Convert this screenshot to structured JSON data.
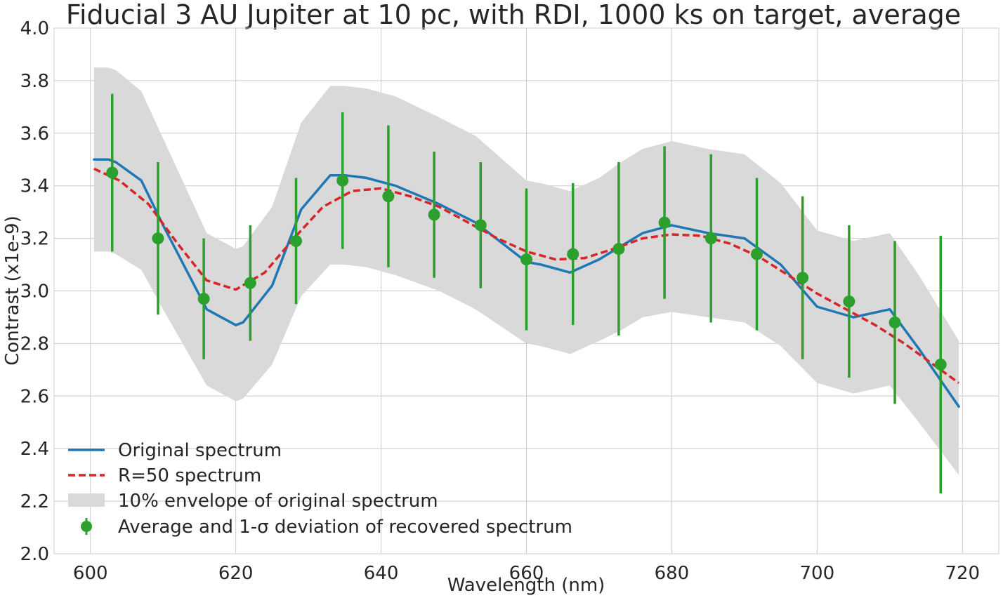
{
  "chart_data": {
    "type": "line",
    "title": "Fiducial 3 AU Jupiter at 10 pc, with RDI, 1000 ks on target, average",
    "xlabel": "Wavelength (nm)",
    "ylabel": "Contrast (x1e-9)",
    "xlim": [
      595,
      725
    ],
    "ylim": [
      2.0,
      4.0
    ],
    "xticks": [
      600,
      620,
      640,
      660,
      680,
      700,
      720
    ],
    "yticks": [
      2.0,
      2.2,
      2.4,
      2.6,
      2.8,
      3.0,
      3.2,
      3.4,
      3.6,
      3.8,
      4.0
    ],
    "xtick_labels": [
      "600",
      "620",
      "640",
      "660",
      "680",
      "700",
      "720"
    ],
    "ytick_labels": [
      "2.0",
      "2.2",
      "2.4",
      "2.6",
      "2.8",
      "3.0",
      "3.2",
      "3.4",
      "3.6",
      "3.8",
      "4.0"
    ],
    "grid": true,
    "legend_position": "lower-left",
    "series": [
      {
        "name": "Original spectrum",
        "kind": "line",
        "color": "#1f77b4",
        "x": [
          600.5,
          602.5,
          603.5,
          607,
          610,
          616,
          620,
          621,
          625,
          629,
          633,
          635,
          638,
          642,
          648,
          653,
          660,
          662,
          666,
          670,
          673,
          676,
          680,
          685,
          690,
          695,
          700,
          705,
          710,
          714,
          719.5
        ],
        "y": [
          3.5,
          3.5,
          3.49,
          3.42,
          3.25,
          2.93,
          2.87,
          2.88,
          3.02,
          3.31,
          3.44,
          3.44,
          3.43,
          3.4,
          3.33,
          3.26,
          3.11,
          3.1,
          3.07,
          3.12,
          3.17,
          3.22,
          3.25,
          3.22,
          3.2,
          3.1,
          2.94,
          2.9,
          2.93,
          2.78,
          2.56
        ]
      },
      {
        "name": "R=50 spectrum",
        "kind": "dashed-line",
        "color": "#d62728",
        "x": [
          600.5,
          604,
          608,
          612,
          616,
          620,
          624,
          628,
          632,
          636,
          640,
          644,
          648,
          652,
          656,
          660,
          664,
          668,
          672,
          676,
          680,
          684,
          688,
          692,
          696,
          700,
          704,
          708,
          712,
          716,
          719.5
        ],
        "y": [
          3.465,
          3.42,
          3.33,
          3.18,
          3.04,
          3.005,
          3.07,
          3.2,
          3.32,
          3.38,
          3.39,
          3.36,
          3.32,
          3.26,
          3.2,
          3.15,
          3.12,
          3.125,
          3.16,
          3.2,
          3.215,
          3.21,
          3.18,
          3.13,
          3.06,
          2.99,
          2.93,
          2.87,
          2.8,
          2.72,
          2.65
        ]
      }
    ],
    "envelope": {
      "name": "10% envelope of original spectrum",
      "color": "#d9d9d9",
      "x": [
        600.5,
        602.5,
        603.5,
        607,
        610,
        616,
        620,
        621,
        625,
        629,
        633,
        635,
        638,
        642,
        648,
        653,
        660,
        662,
        666,
        670,
        673,
        676,
        680,
        685,
        690,
        695,
        700,
        705,
        710,
        714,
        719.5
      ],
      "upper": [
        3.85,
        3.85,
        3.84,
        3.76,
        3.58,
        3.22,
        3.16,
        3.17,
        3.32,
        3.64,
        3.78,
        3.78,
        3.77,
        3.74,
        3.66,
        3.59,
        3.42,
        3.41,
        3.38,
        3.43,
        3.49,
        3.54,
        3.57,
        3.54,
        3.52,
        3.41,
        3.23,
        3.19,
        3.22,
        3.06,
        2.81
      ],
      "lower": [
        3.15,
        3.15,
        3.14,
        3.08,
        2.93,
        2.64,
        2.58,
        2.59,
        2.72,
        2.98,
        3.1,
        3.1,
        3.09,
        3.06,
        3.0,
        2.93,
        2.8,
        2.79,
        2.76,
        2.81,
        2.85,
        2.9,
        2.92,
        2.9,
        2.88,
        2.79,
        2.65,
        2.61,
        2.64,
        2.5,
        2.3
      ]
    },
    "errorbars": {
      "name": "Average and 1-σ deviation of recovered spectrum",
      "color": "#2ca02c",
      "x": [
        603,
        609.3,
        615.6,
        622,
        628.3,
        634.7,
        641,
        647.3,
        653.7,
        660,
        666.4,
        672.7,
        679,
        685.4,
        691.7,
        698,
        704.4,
        710.7,
        717
      ],
      "y": [
        3.45,
        3.2,
        2.97,
        3.03,
        3.19,
        3.42,
        3.36,
        3.29,
        3.25,
        3.12,
        3.14,
        3.16,
        3.26,
        3.2,
        3.14,
        3.05,
        2.96,
        2.88,
        2.72
      ],
      "err": [
        0.3,
        0.29,
        0.23,
        0.22,
        0.24,
        0.26,
        0.27,
        0.24,
        0.24,
        0.27,
        0.27,
        0.33,
        0.29,
        0.32,
        0.29,
        0.31,
        0.29,
        0.31,
        0.49
      ]
    }
  },
  "legend": {
    "items": [
      {
        "label": "Original spectrum"
      },
      {
        "label": "R=50 spectrum"
      },
      {
        "label": "10% envelope of original spectrum"
      },
      {
        "label": "Average and 1-σ deviation of recovered spectrum"
      }
    ]
  }
}
